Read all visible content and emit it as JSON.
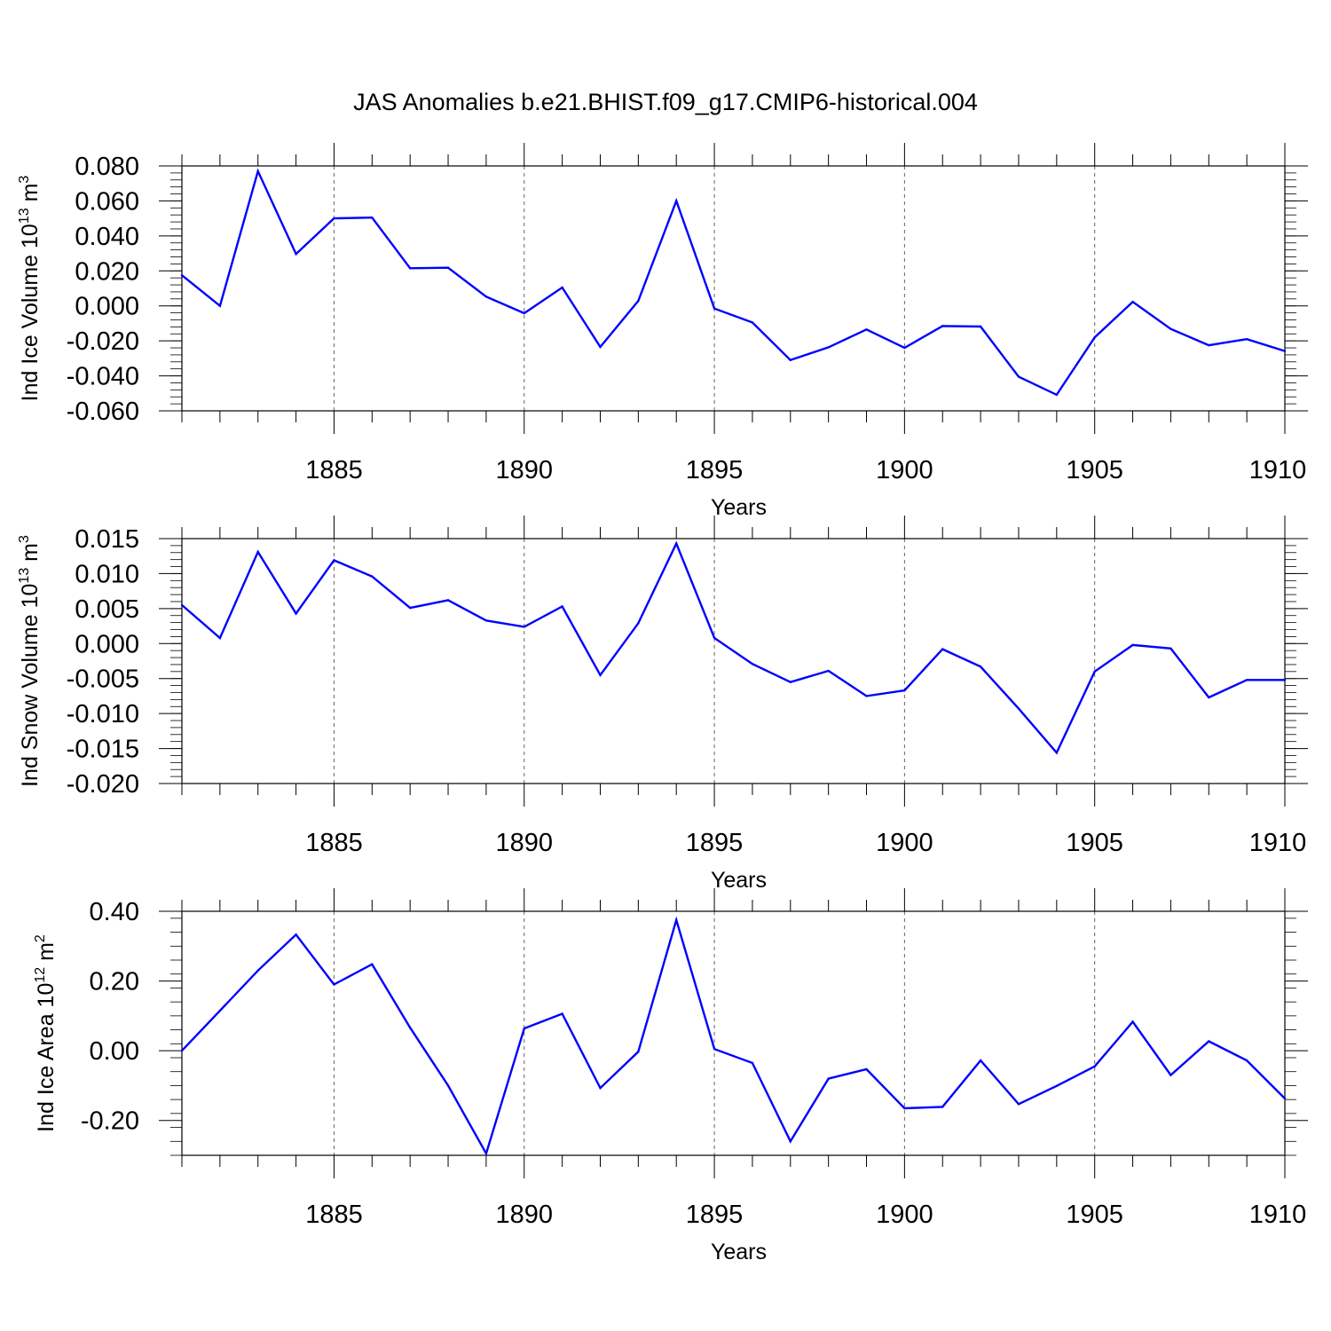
{
  "title": "JAS Anomalies b.e21.BHIST.f09_g17.CMIP6-historical.004",
  "colors": {
    "line": "#0000ff",
    "axis": "#000000",
    "grid": "#666666"
  },
  "chart_data": [
    {
      "type": "line",
      "xlabel": "Years",
      "ylabel_main": "Ind Ice Volume 10",
      "ylabel_exp": "13",
      "ylabel_unit": " m",
      "ylabel_unit_exp": "3",
      "xlim": [
        1881,
        1910
      ],
      "ylim": [
        -0.06,
        0.08
      ],
      "yticks": [
        0.08,
        0.06,
        0.04,
        0.02,
        0.0,
        -0.02,
        -0.04,
        -0.06
      ],
      "ytick_labels": [
        "0.080",
        "0.060",
        "0.040",
        "0.020",
        "0.000",
        "-0.020",
        "-0.040",
        "-0.060"
      ],
      "xticks": [
        1885,
        1890,
        1895,
        1900,
        1905,
        1910
      ],
      "xtick_labels": [
        "1885",
        "1890",
        "1895",
        "1900",
        "1905",
        "1910"
      ],
      "grid": "vertical dashed at major x ticks",
      "x": [
        1881,
        1882,
        1883,
        1884,
        1885,
        1886,
        1887,
        1888,
        1889,
        1890,
        1891,
        1892,
        1893,
        1894,
        1895,
        1896,
        1897,
        1898,
        1899,
        1900,
        1901,
        1902,
        1903,
        1904,
        1905,
        1906,
        1907,
        1908,
        1909,
        1910
      ],
      "values": [
        0.0175,
        0.0,
        0.077,
        0.0297,
        0.05,
        0.0505,
        0.0215,
        0.0218,
        0.0053,
        -0.0042,
        0.0105,
        -0.0235,
        0.0028,
        0.06,
        -0.0015,
        -0.0095,
        -0.031,
        -0.0237,
        -0.0135,
        -0.024,
        -0.0115,
        -0.0118,
        -0.0405,
        -0.0508,
        -0.018,
        0.0023,
        -0.0132,
        -0.0225,
        -0.019,
        -0.0258
      ]
    },
    {
      "type": "line",
      "xlabel": "Years",
      "ylabel_main": "Ind Snow Volume 10",
      "ylabel_exp": "13",
      "ylabel_unit": " m",
      "ylabel_unit_exp": "3",
      "xlim": [
        1881,
        1910
      ],
      "ylim": [
        -0.02,
        0.015
      ],
      "yticks": [
        0.015,
        0.01,
        0.005,
        0.0,
        -0.005,
        -0.01,
        -0.015,
        -0.02
      ],
      "ytick_labels": [
        "0.015",
        "0.010",
        "0.005",
        "0.000",
        "-0.005",
        "-0.010",
        "-0.015",
        "-0.020"
      ],
      "xticks": [
        1885,
        1890,
        1895,
        1900,
        1905,
        1910
      ],
      "xtick_labels": [
        "1885",
        "1890",
        "1895",
        "1900",
        "1905",
        "1910"
      ],
      "grid": "vertical dashed at major x ticks",
      "x": [
        1881,
        1882,
        1883,
        1884,
        1885,
        1886,
        1887,
        1888,
        1889,
        1890,
        1891,
        1892,
        1893,
        1894,
        1895,
        1896,
        1897,
        1898,
        1899,
        1900,
        1901,
        1902,
        1903,
        1904,
        1905,
        1906,
        1907,
        1908,
        1909,
        1910
      ],
      "values": [
        0.0055,
        0.0008,
        0.0131,
        0.0043,
        0.0119,
        0.0096,
        0.0051,
        0.0062,
        0.0033,
        0.0024,
        0.0053,
        -0.0045,
        0.0029,
        0.0143,
        0.0008,
        -0.0029,
        -0.0055,
        -0.0039,
        -0.0075,
        -0.0067,
        -0.0008,
        -0.0033,
        -0.0093,
        -0.0156,
        -0.004,
        -0.0002,
        -0.0007,
        -0.0077,
        -0.0052,
        -0.0052
      ]
    },
    {
      "type": "line",
      "xlabel": "Years",
      "ylabel_main": "Ind Ice Area 10",
      "ylabel_exp": "12",
      "ylabel_unit": " m",
      "ylabel_unit_exp": "2",
      "xlim": [
        1881,
        1910
      ],
      "ylim": [
        -0.3,
        0.4
      ],
      "yticks": [
        0.4,
        0.2,
        0.0,
        -0.2
      ],
      "ytick_labels": [
        "0.40",
        "0.20",
        "0.00",
        "-0.20"
      ],
      "xticks": [
        1885,
        1890,
        1895,
        1900,
        1905,
        1910
      ],
      "xtick_labels": [
        "1885",
        "1890",
        "1895",
        "1900",
        "1905",
        "1910"
      ],
      "grid": "vertical dashed at major x ticks",
      "x": [
        1881,
        1882,
        1883,
        1884,
        1885,
        1886,
        1887,
        1888,
        1889,
        1890,
        1891,
        1892,
        1893,
        1894,
        1895,
        1896,
        1897,
        1898,
        1899,
        1900,
        1901,
        1902,
        1903,
        1904,
        1905,
        1906,
        1907,
        1908,
        1909,
        1910
      ],
      "values": [
        0.0,
        0.115,
        0.23,
        0.333,
        0.19,
        0.248,
        0.066,
        -0.1,
        -0.295,
        0.064,
        0.106,
        -0.107,
        -0.003,
        0.375,
        0.005,
        -0.035,
        -0.26,
        -0.08,
        -0.053,
        -0.165,
        -0.161,
        -0.028,
        -0.153,
        -0.101,
        -0.045,
        0.083,
        -0.07,
        0.027,
        -0.028,
        -0.137
      ]
    }
  ]
}
